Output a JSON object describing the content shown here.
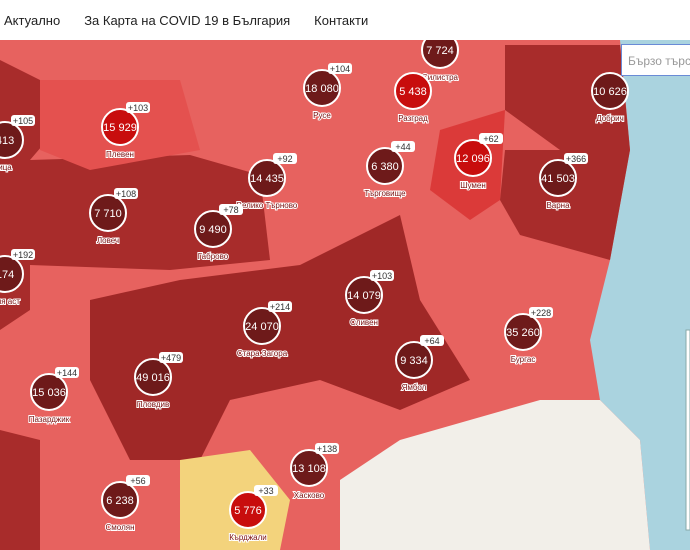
{
  "nav": {
    "items": [
      "Актуално",
      "За Карта на COVID 19 в България",
      "Контакти"
    ]
  },
  "search": {
    "placeholder": "Бързо търсене"
  },
  "regions": [
    {
      "name": "Плевен",
      "total": "15 929",
      "change": "+103"
    },
    {
      "name": "Русе",
      "total": "18 080",
      "change": "+104"
    },
    {
      "name": "Силистра",
      "total": "7 724",
      "change": "+60"
    },
    {
      "name": "Разград",
      "total": "5 438"
    },
    {
      "name": "Добрич",
      "total": "10 626"
    },
    {
      "name": "Шумен",
      "total": "12 096",
      "change": "+62"
    },
    {
      "name": "Търговище",
      "total": "6 380",
      "change": "+44"
    },
    {
      "name": "Велико Търново",
      "total": "14 435",
      "change": "+92"
    },
    {
      "name": "Варна",
      "total": "41 503",
      "change": "+366"
    },
    {
      "name": "Ловеч",
      "total": "7 710",
      "change": "+108"
    },
    {
      "name": "Габрово",
      "total": "9 490",
      "change": "+78"
    },
    {
      "name": "Сливен",
      "total": "14 079",
      "change": "+103"
    },
    {
      "name": "Стара Загора",
      "total": "24 070",
      "change": "+214"
    },
    {
      "name": "Бургас",
      "total": "35 260",
      "change": "+228"
    },
    {
      "name": "Ямбол",
      "total": "9 334",
      "change": "+64"
    },
    {
      "name": "Пловдив",
      "total": "49 016",
      "change": "+479"
    },
    {
      "name": "Пазарджик",
      "total": "15 036",
      "change": "+144"
    },
    {
      "name": "Хасково",
      "total": "13 108",
      "change": "+138"
    },
    {
      "name": "Смолян",
      "total": "6 238",
      "change": "+56"
    },
    {
      "name": "Кърджали",
      "total": "5 776",
      "change": "+33"
    },
    {
      "name": "ица",
      "total": "413",
      "change": "+105"
    },
    {
      "name": "фия аст",
      "total": "174",
      "change": "+192"
    }
  ]
}
